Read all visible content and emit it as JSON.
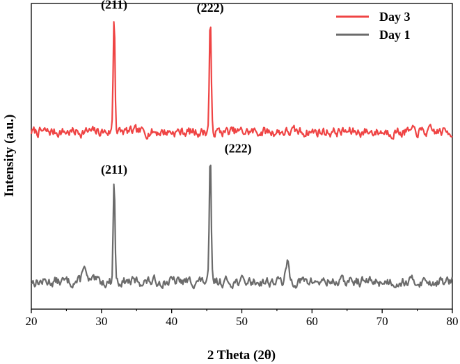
{
  "chart_data": {
    "type": "line",
    "xlabel": "2 Theta (2θ)",
    "ylabel": "Intensity (a.u.)",
    "xlim": [
      20,
      80
    ],
    "xticks": [
      20,
      30,
      40,
      50,
      60,
      70,
      80
    ],
    "grid": false,
    "legend_position": "top-right",
    "series": [
      {
        "name": "Day 3",
        "color": "#ef4444",
        "baseline": 58,
        "noise": 3,
        "noise_seed": 7,
        "peaks": [
          {
            "x": 31.8,
            "height": 38,
            "label": "(211)"
          },
          {
            "x": 45.5,
            "height": 37,
            "label": "(222)"
          }
        ]
      },
      {
        "name": "Day 1",
        "color": "#6b6b6b",
        "baseline": 9,
        "noise": 3,
        "noise_seed": 13,
        "peaks": [
          {
            "x": 27.5,
            "height": 6,
            "label": ""
          },
          {
            "x": 31.8,
            "height": 33,
            "label": "(211)"
          },
          {
            "x": 45.5,
            "height": 40,
            "label": "(222)"
          },
          {
            "x": 56.5,
            "height": 6,
            "label": ""
          }
        ]
      }
    ]
  }
}
